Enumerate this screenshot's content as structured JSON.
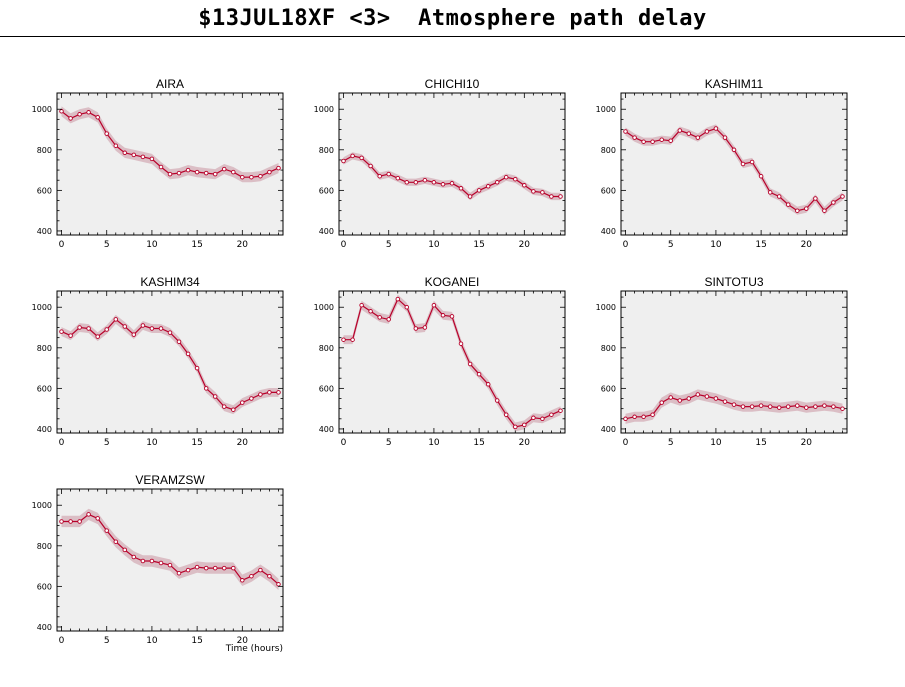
{
  "page": {
    "title": "$13JUL18XF <3>  Atmosphere path delay",
    "xlabel": "Time (hours)"
  },
  "colors": {
    "plot_bg": "#efefef",
    "band": "#d8b8c0",
    "line": "#b8002a",
    "marker_face": "#ffffff"
  },
  "chart_data": [
    {
      "type": "line",
      "title": "AIRA",
      "xlim": [
        -0.5,
        24.5
      ],
      "ylim": [
        380,
        1080
      ],
      "xticks": [
        0,
        5,
        10,
        15,
        20
      ],
      "yticks": [
        400,
        600,
        800,
        1000
      ],
      "x": [
        0,
        1,
        2,
        3,
        4,
        5,
        6,
        7,
        8,
        9,
        10,
        11,
        12,
        13,
        14,
        15,
        16,
        17,
        18,
        19,
        20,
        21,
        22,
        23,
        24
      ],
      "values": [
        990,
        955,
        975,
        985,
        960,
        880,
        820,
        785,
        775,
        765,
        755,
        715,
        680,
        685,
        700,
        690,
        685,
        680,
        705,
        690,
        665,
        665,
        670,
        690,
        710
      ],
      "band_halfwidth": 25
    },
    {
      "type": "line",
      "title": "CHICHI10",
      "xlim": [
        -0.5,
        24.5
      ],
      "ylim": [
        380,
        1080
      ],
      "xticks": [
        0,
        5,
        10,
        15,
        20
      ],
      "yticks": [
        400,
        600,
        800,
        1000
      ],
      "x": [
        0,
        1,
        2,
        3,
        4,
        5,
        6,
        7,
        8,
        9,
        10,
        11,
        12,
        13,
        14,
        15,
        16,
        17,
        18,
        19,
        20,
        21,
        22,
        23,
        24
      ],
      "values": [
        745,
        770,
        760,
        720,
        670,
        680,
        660,
        640,
        640,
        650,
        640,
        630,
        635,
        610,
        570,
        600,
        620,
        640,
        665,
        655,
        625,
        595,
        590,
        570,
        570
      ],
      "band_halfwidth": 18
    },
    {
      "type": "line",
      "title": "KASHIM11",
      "xlim": [
        -0.5,
        24.5
      ],
      "ylim": [
        380,
        1080
      ],
      "xticks": [
        0,
        5,
        10,
        15,
        20
      ],
      "yticks": [
        400,
        600,
        800,
        1000
      ],
      "x": [
        0,
        1,
        2,
        3,
        4,
        5,
        6,
        7,
        8,
        9,
        10,
        11,
        12,
        13,
        14,
        15,
        16,
        17,
        18,
        19,
        20,
        21,
        22,
        23,
        24
      ],
      "values": [
        890,
        860,
        840,
        840,
        850,
        845,
        895,
        880,
        860,
        890,
        905,
        860,
        800,
        730,
        740,
        670,
        590,
        570,
        530,
        500,
        510,
        560,
        500,
        540,
        570
      ],
      "band_halfwidth": 20
    },
    {
      "type": "line",
      "title": "KASHIM34",
      "xlim": [
        -0.5,
        24.5
      ],
      "ylim": [
        380,
        1080
      ],
      "xticks": [
        0,
        5,
        10,
        15,
        20
      ],
      "yticks": [
        400,
        600,
        800,
        1000
      ],
      "x": [
        0,
        1,
        2,
        3,
        4,
        5,
        6,
        7,
        8,
        9,
        10,
        11,
        12,
        13,
        14,
        15,
        16,
        17,
        18,
        19,
        20,
        21,
        22,
        23,
        24
      ],
      "values": [
        880,
        860,
        900,
        895,
        855,
        890,
        940,
        905,
        865,
        910,
        895,
        895,
        875,
        830,
        770,
        700,
        600,
        560,
        510,
        495,
        530,
        550,
        570,
        580,
        580
      ],
      "band_halfwidth": 22
    },
    {
      "type": "line",
      "title": "KOGANEI",
      "xlim": [
        -0.5,
        24.5
      ],
      "ylim": [
        380,
        1080
      ],
      "xticks": [
        0,
        5,
        10,
        15,
        20
      ],
      "yticks": [
        400,
        600,
        800,
        1000
      ],
      "x": [
        0,
        1,
        2,
        3,
        4,
        5,
        6,
        7,
        8,
        9,
        10,
        11,
        12,
        13,
        14,
        15,
        16,
        17,
        18,
        19,
        20,
        21,
        22,
        23,
        24
      ],
      "values": [
        840,
        840,
        1010,
        980,
        950,
        940,
        1040,
        1000,
        895,
        900,
        1010,
        960,
        955,
        820,
        720,
        670,
        620,
        540,
        470,
        410,
        420,
        455,
        450,
        470,
        490
      ],
      "band_halfwidth": 22
    },
    {
      "type": "line",
      "title": "SINTOTU3",
      "xlim": [
        -0.5,
        24.5
      ],
      "ylim": [
        380,
        1080
      ],
      "xticks": [
        0,
        5,
        10,
        15,
        20
      ],
      "yticks": [
        400,
        600,
        800,
        1000
      ],
      "x": [
        0,
        1,
        2,
        3,
        4,
        5,
        6,
        7,
        8,
        9,
        10,
        11,
        12,
        13,
        14,
        15,
        16,
        17,
        18,
        19,
        20,
        21,
        22,
        23,
        24
      ],
      "values": [
        450,
        460,
        460,
        470,
        530,
        555,
        540,
        550,
        570,
        560,
        550,
        535,
        520,
        510,
        510,
        515,
        510,
        505,
        510,
        515,
        505,
        510,
        515,
        510,
        500
      ],
      "band_halfwidth": 25
    },
    {
      "type": "line",
      "title": "VERAMZSW",
      "xlim": [
        -0.5,
        24.5
      ],
      "ylim": [
        380,
        1080
      ],
      "xticks": [
        0,
        5,
        10,
        15,
        20
      ],
      "yticks": [
        400,
        600,
        800,
        1000
      ],
      "x": [
        0,
        1,
        2,
        3,
        4,
        5,
        6,
        7,
        8,
        9,
        10,
        11,
        12,
        13,
        14,
        15,
        16,
        17,
        18,
        19,
        20,
        21,
        22,
        23,
        24
      ],
      "values": [
        920,
        920,
        920,
        955,
        935,
        875,
        820,
        780,
        745,
        725,
        725,
        715,
        705,
        665,
        680,
        695,
        690,
        690,
        690,
        690,
        630,
        650,
        680,
        650,
        610
      ],
      "band_halfwidth": 28
    }
  ]
}
